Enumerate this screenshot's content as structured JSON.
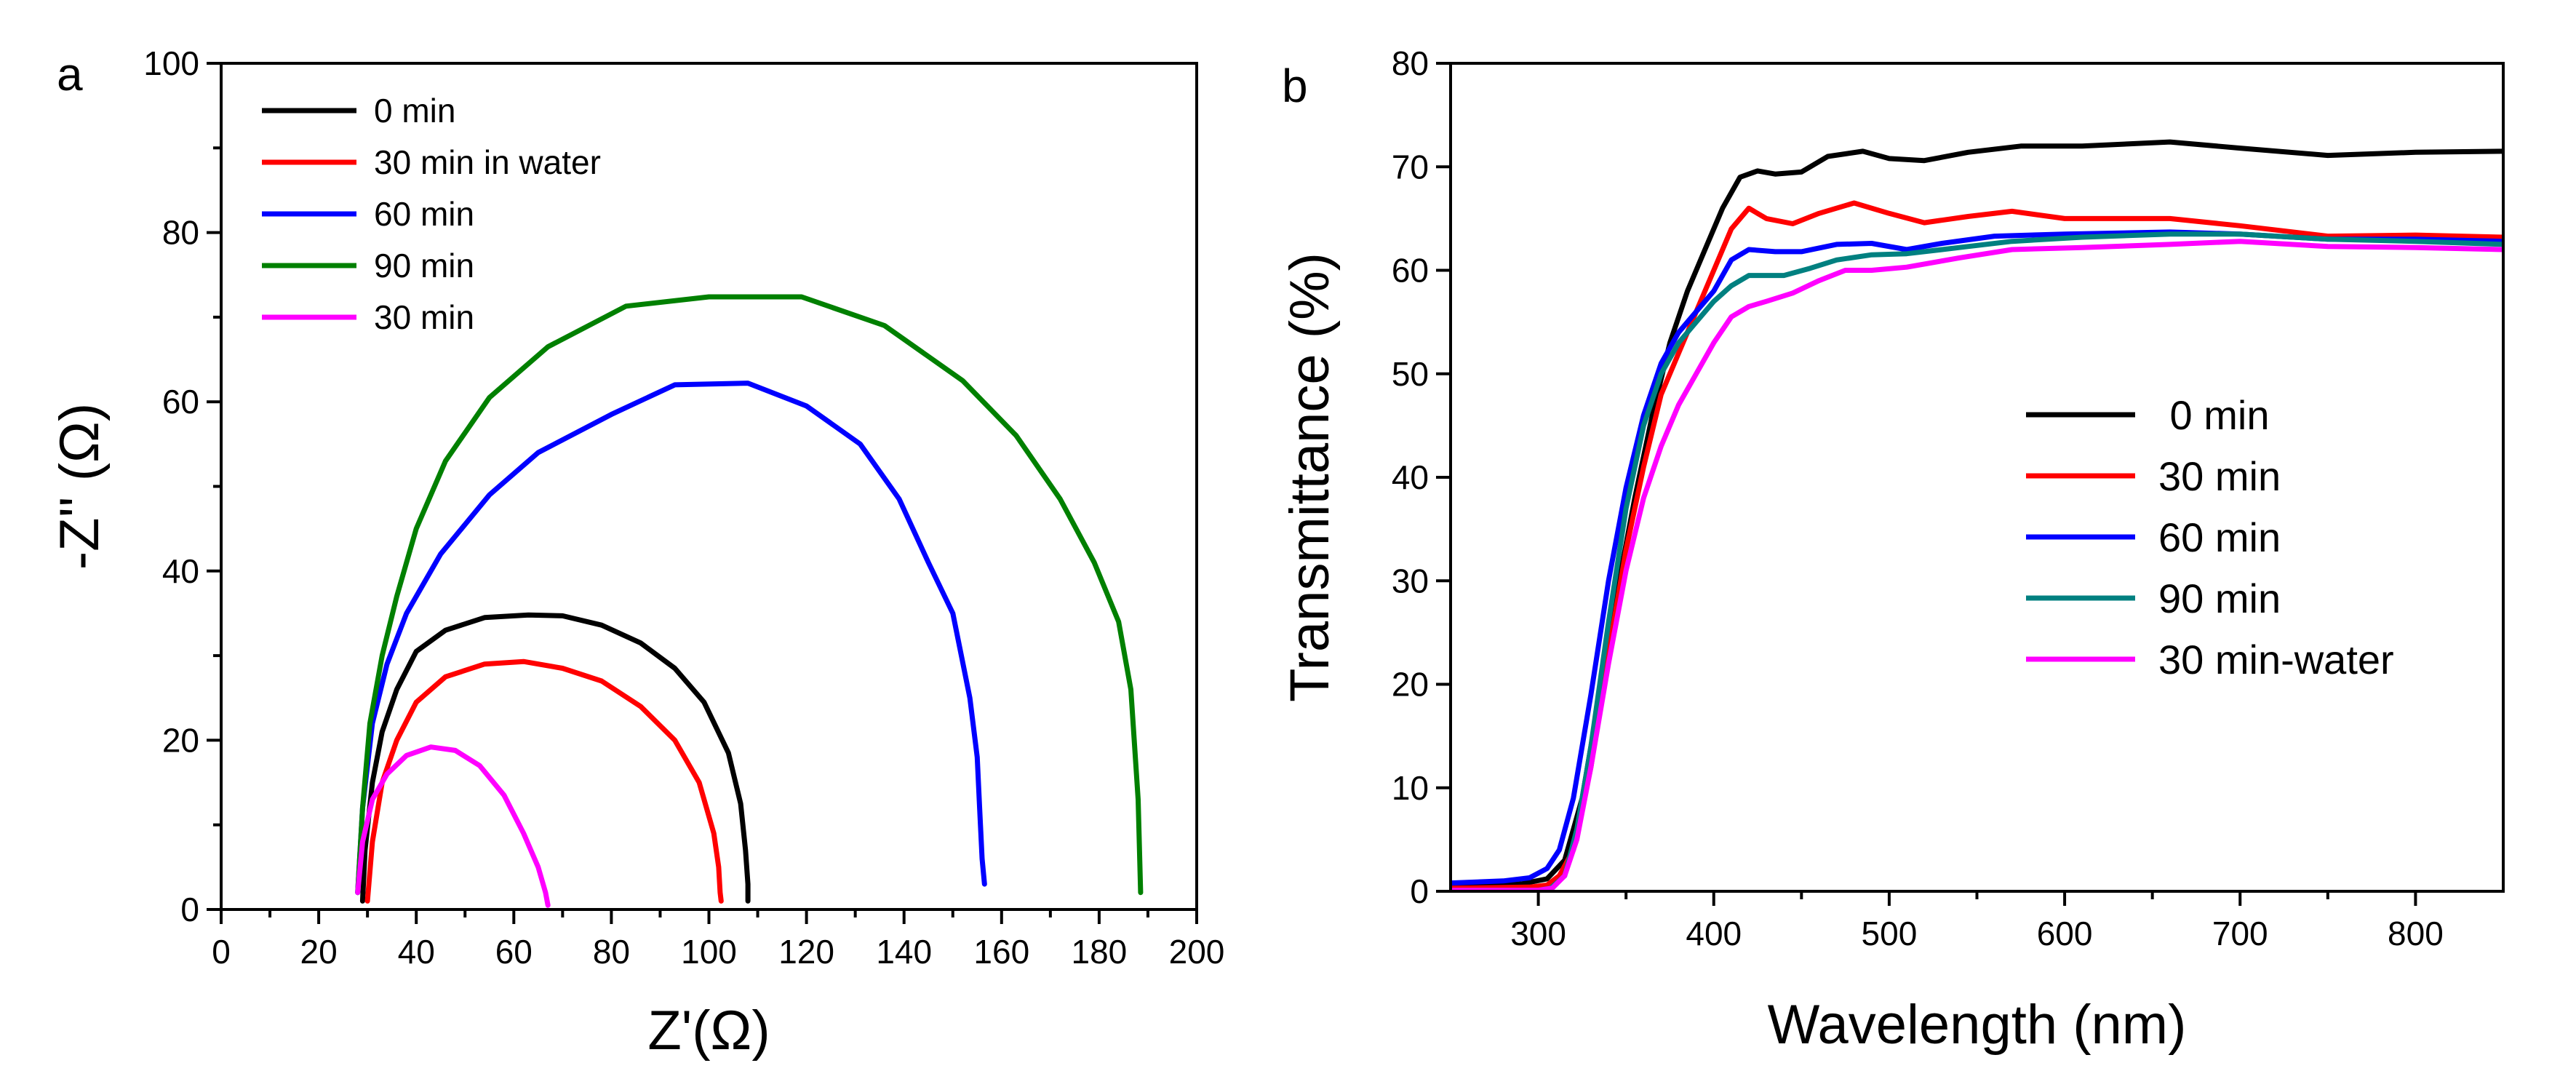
{
  "chart_data": [
    {
      "type": "line",
      "panel_label": "a",
      "title": "",
      "xlabel": "Z'(Ω)",
      "ylabel": "-Z'' (Ω)",
      "xlim": [
        0,
        200
      ],
      "ylim": [
        0,
        100
      ],
      "xticks": [
        0,
        20,
        40,
        60,
        80,
        100,
        120,
        140,
        160,
        180,
        200
      ],
      "yticks": [
        0,
        20,
        40,
        60,
        80,
        100
      ],
      "xtick_labels": [
        "0",
        "20",
        "40",
        "60",
        "80",
        "100",
        "120",
        "140",
        "160",
        "180",
        "200"
      ],
      "ytick_labels": [
        "0",
        "20",
        "40",
        "60",
        "80",
        "100"
      ],
      "legend_position": "top-left",
      "grid": false,
      "series": [
        {
          "name": "0 min",
          "color": "#000000",
          "x": [
            29,
            29.5,
            31,
            33,
            36,
            40,
            46,
            54,
            63,
            70,
            78,
            86,
            93,
            99,
            104,
            106.5,
            107.5,
            108,
            108
          ],
          "y": [
            1,
            7,
            15,
            21,
            26,
            30.5,
            33,
            34.5,
            34.8,
            34.7,
            33.6,
            31.5,
            28.5,
            24.5,
            18.5,
            12.5,
            7,
            3,
            1
          ]
        },
        {
          "name": "30 min in water",
          "color": "#ff0000",
          "x": [
            30,
            31,
            33,
            36,
            40,
            46,
            54,
            62,
            70,
            78,
            86,
            93,
            98,
            101,
            102,
            102.3,
            102.5
          ],
          "y": [
            1,
            8,
            15,
            20,
            24.5,
            27.5,
            29,
            29.3,
            28.5,
            27,
            24,
            20,
            15,
            9,
            5,
            2,
            1
          ]
        },
        {
          "name": "60 min",
          "color": "#0000ff",
          "x": [
            28,
            29,
            31,
            34,
            38,
            45,
            55,
            65,
            80,
            93,
            108,
            120,
            131,
            139,
            145,
            150,
            153.5,
            155,
            155.5,
            156,
            156.5
          ],
          "y": [
            2,
            12,
            22,
            29,
            35,
            42,
            49,
            54,
            58.5,
            62,
            62.2,
            59.5,
            55,
            48.5,
            41,
            35,
            25,
            18,
            12,
            6,
            3
          ]
        },
        {
          "name": "90 min",
          "color": "#008000",
          "x": [
            28,
            29,
            30.5,
            33,
            36,
            40,
            46,
            55,
            67,
            83,
            100,
            119,
            136,
            152,
            163,
            172,
            179,
            184,
            186.5,
            188,
            188.5
          ],
          "y": [
            2,
            12,
            22,
            30,
            37,
            45,
            53,
            60.5,
            66.5,
            71.3,
            72.4,
            72.4,
            69,
            62.5,
            56,
            48.5,
            41,
            34,
            26,
            13,
            2
          ]
        },
        {
          "name": "30 min",
          "color": "#ff00ff",
          "x": [
            28,
            29,
            31,
            34,
            38,
            43,
            48,
            53,
            58,
            62,
            65,
            66.5,
            67
          ],
          "y": [
            2,
            8,
            13,
            16,
            18.2,
            19.2,
            18.8,
            17,
            13.5,
            9,
            5,
            2,
            0.5
          ]
        }
      ]
    },
    {
      "type": "line",
      "panel_label": "b",
      "title": "",
      "xlabel": "Wavelength (nm)",
      "ylabel": "Transmittance (%)",
      "xlim": [
        250,
        850
      ],
      "ylim": [
        0,
        80
      ],
      "xticks": [
        300,
        400,
        500,
        600,
        700,
        800
      ],
      "yticks": [
        0,
        10,
        20,
        30,
        40,
        50,
        60,
        70,
        80
      ],
      "xtick_labels": [
        "300",
        "400",
        "500",
        "600",
        "700",
        "800"
      ],
      "ytick_labels": [
        "0",
        "10",
        "20",
        "30",
        "40",
        "50",
        "60",
        "70",
        "80"
      ],
      "legend_position": "center-right",
      "grid": false,
      "series": [
        {
          "name": " 0 min",
          "color": "#000000",
          "x": [
            250,
            290,
            305,
            315,
            325,
            335,
            345,
            355,
            365,
            375,
            385,
            395,
            405,
            415,
            425,
            435,
            450,
            465,
            485,
            500,
            520,
            545,
            575,
            610,
            660,
            700,
            750,
            800,
            850
          ],
          "y": [
            0.5,
            0.7,
            1.2,
            3,
            9,
            19,
            29,
            38,
            46,
            53,
            58,
            62,
            66,
            69,
            69.6,
            69.3,
            69.5,
            71,
            71.5,
            70.8,
            70.6,
            71.4,
            72,
            72,
            72.4,
            71.8,
            71.1,
            71.4,
            71.5
          ]
        },
        {
          "name": "30 min",
          "color": "#ff0000",
          "x": [
            250,
            295,
            305,
            312,
            320,
            330,
            340,
            350,
            360,
            370,
            380,
            390,
            400,
            410,
            420,
            430,
            445,
            460,
            480,
            500,
            520,
            545,
            570,
            600,
            660,
            700,
            750,
            800,
            850
          ],
          "y": [
            0.3,
            0.4,
            0.6,
            1.5,
            4,
            12,
            23,
            33,
            41,
            48,
            52,
            56,
            60,
            64,
            66,
            65,
            64.5,
            65.5,
            66.5,
            65.5,
            64.6,
            65.2,
            65.7,
            65,
            65,
            64.3,
            63.3,
            63.4,
            63.2
          ]
        },
        {
          "name": "60 min",
          "color": "#0000ff",
          "x": [
            250,
            280,
            295,
            305,
            312,
            320,
            330,
            340,
            350,
            360,
            370,
            380,
            390,
            400,
            410,
            420,
            435,
            450,
            470,
            490,
            510,
            530,
            560,
            600,
            660,
            700,
            750,
            800,
            850
          ],
          "y": [
            0.8,
            1,
            1.3,
            2.2,
            4,
            9,
            19,
            30,
            39,
            46,
            51,
            54,
            56,
            58,
            61,
            62,
            61.8,
            61.8,
            62.5,
            62.6,
            62,
            62.6,
            63.3,
            63.5,
            63.7,
            63.5,
            63,
            63,
            62.8
          ]
        },
        {
          "name": "90 min",
          "color": "#008080",
          "x": [
            250,
            300,
            307,
            315,
            322,
            330,
            340,
            350,
            360,
            370,
            380,
            390,
            400,
            410,
            420,
            430,
            440,
            455,
            470,
            490,
            510,
            540,
            570,
            610,
            660,
            700,
            750,
            800,
            850
          ],
          "y": [
            0.1,
            0.1,
            0.3,
            1.5,
            6,
            14,
            26,
            37,
            45,
            50,
            53,
            55,
            57,
            58.5,
            59.5,
            59.5,
            59.5,
            60.2,
            61,
            61.5,
            61.6,
            62.2,
            62.8,
            63.2,
            63.5,
            63.5,
            63,
            62.8,
            62.5
          ]
        },
        {
          "name": "30 min-water",
          "color": "#ff00ff",
          "x": [
            250,
            300,
            308,
            315,
            322,
            330,
            340,
            350,
            360,
            370,
            380,
            390,
            400,
            410,
            420,
            430,
            445,
            460,
            475,
            490,
            510,
            540,
            570,
            610,
            660,
            700,
            750,
            800,
            850
          ],
          "y": [
            0.1,
            0.1,
            0.3,
            1.5,
            5,
            12,
            22,
            31,
            38,
            43,
            47,
            50,
            53,
            55.5,
            56.5,
            57,
            57.8,
            59,
            60,
            60,
            60.3,
            61.2,
            62,
            62.2,
            62.5,
            62.8,
            62.3,
            62.2,
            62
          ]
        }
      ]
    }
  ]
}
